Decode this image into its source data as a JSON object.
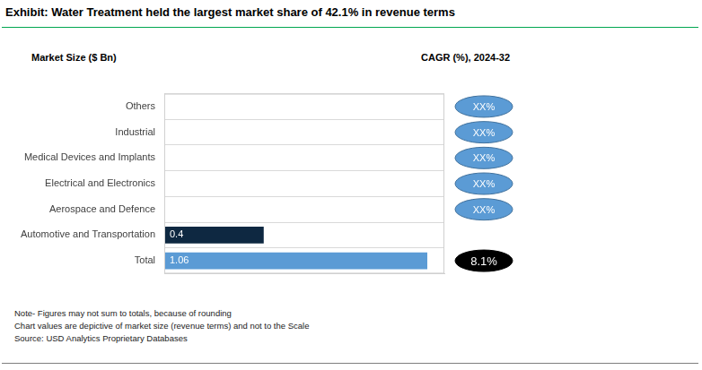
{
  "chart_data": {
    "type": "bar",
    "orientation": "horizontal",
    "title": "Exhibit: Water Treatment held the largest market share of 42.1% in revenue terms",
    "xlabel": "Market Size ($ Bn)",
    "cagr_title": "CAGR (%), 2024-32",
    "categories": [
      "Others",
      "Industrial",
      "Medical Devices and Implants",
      "Electrical and Electronics",
      "Aerospace and Defence",
      "Automotive and Transportation",
      "Total"
    ],
    "values": [
      null,
      null,
      null,
      null,
      null,
      0.4,
      1.06
    ],
    "colors": [
      "#0e2841",
      "#0e2841",
      "#0e2841",
      "#0e2841",
      "#0e2841",
      "#0e2841",
      "#5b9bd5"
    ],
    "data_labels": true,
    "cagr": [
      null,
      null,
      null,
      null,
      null,
      null,
      8.1
    ],
    "cagr_labels": [
      "XX%",
      "XX%",
      "XX%",
      "XX%",
      "XX%",
      null,
      "8.1%"
    ],
    "xlim": [
      0,
      1.13
    ],
    "xticks": [],
    "tick_labels": "y",
    "grid": true,
    "notes": [
      "Note- Figures may not sum to totals, because of rounding",
      "Chart values are depictive of market size (revenue terms) and not to the Scale",
      "Source: USD Analytics Proprietary Databases"
    ]
  }
}
